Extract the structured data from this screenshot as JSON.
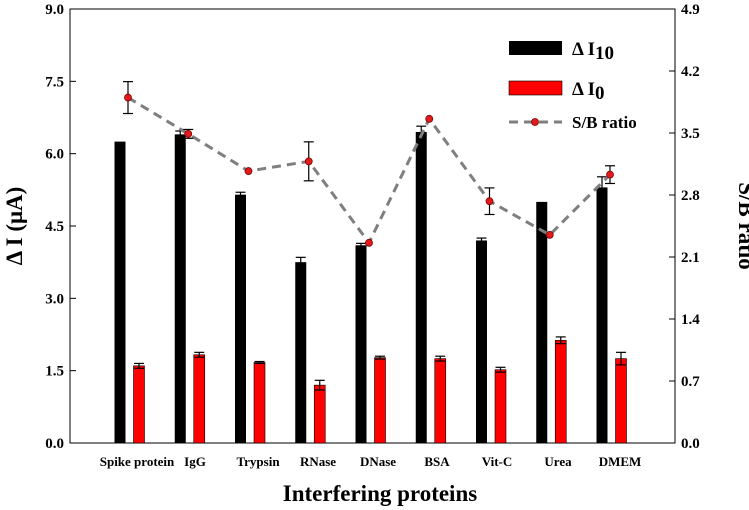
{
  "chart_data": {
    "type": "bar",
    "title": "",
    "xlabel": "Interfering proteins",
    "ylabel_left": "Δ I (μA)",
    "ylabel_right": "S/B ratio",
    "ylim_left": [
      0,
      9.0
    ],
    "ylim_right": [
      0,
      4.9
    ],
    "yticks_left": [
      "0.0",
      "1.5",
      "3.0",
      "4.5",
      "6.0",
      "7.5",
      "9.0"
    ],
    "yticks_right": [
      "0.0",
      "0.7",
      "1.4",
      "2.1",
      "2.8",
      "3.5",
      "4.2",
      "4.9"
    ],
    "grid": false,
    "legend_position": "top-right",
    "categories": [
      "Spike protein",
      "IgG",
      "Trypsin",
      "RNase",
      "DNase",
      "BSA",
      "Vit-C",
      "Urea",
      "DMEM"
    ],
    "series": [
      {
        "name": "Δ I10",
        "legend_main": "Δ I",
        "legend_sub": "10",
        "kind": "bar",
        "axis": "left",
        "color": "#000000",
        "values": [
          6.25,
          6.4,
          5.15,
          3.75,
          4.1,
          6.45,
          4.2,
          5.0,
          5.3
        ],
        "errors": [
          0.0,
          0.07,
          0.05,
          0.1,
          0.04,
          0.12,
          0.05,
          0.0,
          0.22
        ]
      },
      {
        "name": "Δ I0",
        "legend_main": "Δ I",
        "legend_sub": "0",
        "kind": "bar",
        "axis": "left",
        "color": "#ff0000",
        "values": [
          1.6,
          1.83,
          1.67,
          1.2,
          1.77,
          1.75,
          1.52,
          2.13,
          1.75
        ],
        "errors": [
          0.05,
          0.05,
          0.02,
          0.1,
          0.03,
          0.05,
          0.05,
          0.07,
          0.13
        ]
      },
      {
        "name": "S/B ratio",
        "legend_main": "S/B ratio",
        "legend_sub": "",
        "kind": "line",
        "axis": "right",
        "color": "#7f7f7f",
        "marker_color": "#e31a1c",
        "values": [
          3.9,
          3.49,
          3.07,
          3.18,
          2.26,
          3.66,
          2.73,
          2.35,
          3.03
        ],
        "errors": [
          0.18,
          0.05,
          0.0,
          0.22,
          0.0,
          0.0,
          0.15,
          0.0,
          0.1
        ]
      }
    ]
  }
}
